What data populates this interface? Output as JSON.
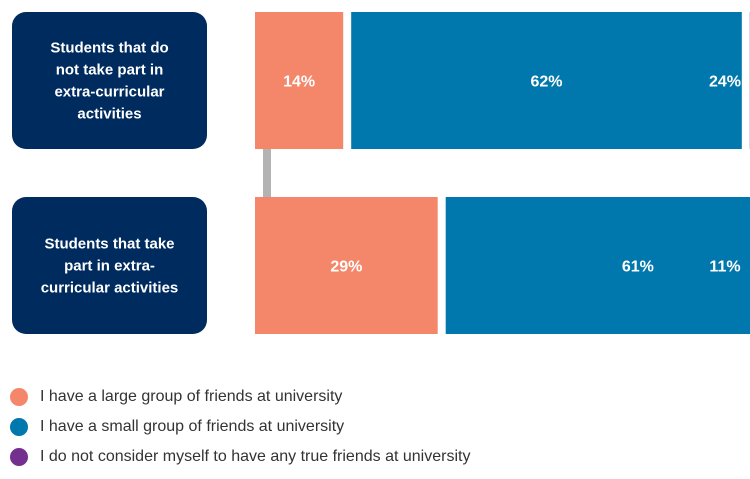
{
  "chart_data": {
    "type": "bar",
    "orientation": "horizontal-stacked",
    "categories": [
      [
        "Students that do",
        "not take part in",
        "extra-curricular",
        "activities"
      ],
      [
        "Students that take",
        "part in extra-",
        "curricular activities"
      ]
    ],
    "series": [
      {
        "name": "I have a large group of friends at university",
        "values": [
          14,
          29
        ],
        "labels": [
          "14%",
          "29%"
        ],
        "color": "#f4876a"
      },
      {
        "name": "I have a small group of friends at university",
        "values": [
          62,
          61
        ],
        "labels": [
          "62%",
          "61%"
        ],
        "color": "#0077ad"
      },
      {
        "name": "I do not consider myself to have any true friends at university",
        "values": [
          24,
          11
        ],
        "labels": [
          "24%",
          "11%"
        ],
        "color": "#73308f"
      }
    ],
    "legend_position": "bottom",
    "row_label_color": "#002b5f",
    "connector_color": "#b3b3b3"
  }
}
